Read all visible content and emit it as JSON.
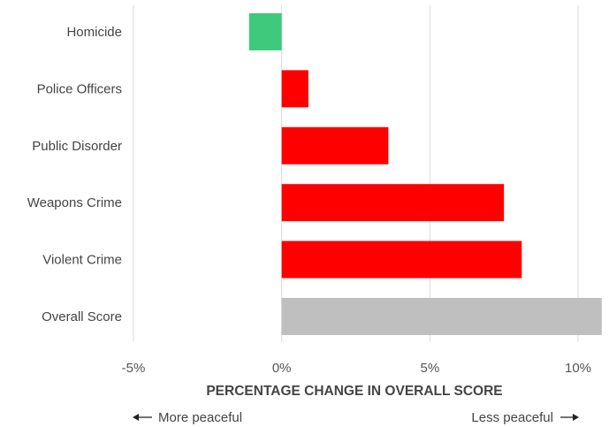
{
  "chart_data": {
    "type": "bar",
    "orientation": "horizontal",
    "categories": [
      "Homicide",
      "Police Officers",
      "Public Disorder",
      "Weapons Crime",
      "Violent Crime",
      "Overall Score"
    ],
    "values": [
      -1.1,
      0.9,
      3.6,
      7.5,
      8.1,
      10.8
    ],
    "bar_colors": [
      "#3ec97d",
      "#ff0000",
      "#ff0000",
      "#ff0000",
      "#ff0000",
      "#bfbfbf"
    ],
    "xlim": [
      -5,
      10
    ],
    "xticks": [
      -5,
      0,
      5,
      10
    ],
    "xtick_labels": [
      "-5%",
      "0%",
      "5%",
      "10%"
    ],
    "xlabel": "PERCENTAGE CHANGE IN OVERALL SCORE",
    "title": "",
    "grid": "vertical",
    "annotations": {
      "left": "More peaceful",
      "right": "Less peaceful"
    }
  },
  "colors": {
    "improvement": "#3ec97d",
    "deterioration": "#ff0000",
    "overall": "#bfbfbf",
    "grid": "#d9d9d9",
    "text": "#444444"
  }
}
